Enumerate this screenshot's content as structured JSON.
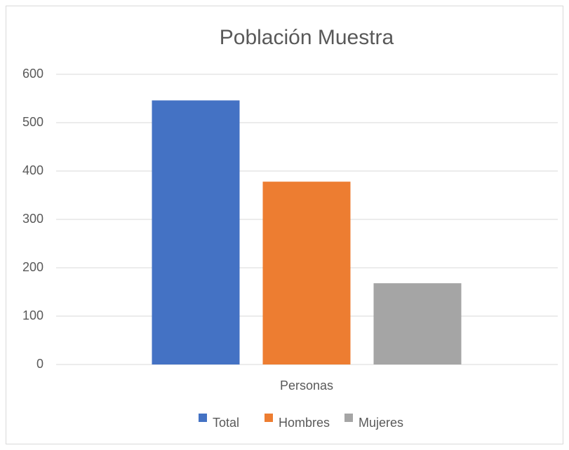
{
  "chart_data": {
    "type": "bar",
    "title": "Población Muestra",
    "categories": [
      "Personas"
    ],
    "series": [
      {
        "name": "Total",
        "color": "#4472c4",
        "values": [
          546
        ]
      },
      {
        "name": "Hombres",
        "color": "#ed7d31",
        "values": [
          378
        ]
      },
      {
        "name": "Mujeres",
        "color": "#a5a5a5",
        "values": [
          168
        ]
      }
    ],
    "ylim": [
      0,
      600
    ],
    "yticks": [
      0,
      100,
      200,
      300,
      400,
      500,
      600
    ],
    "grid": true,
    "legend": "bottom"
  }
}
